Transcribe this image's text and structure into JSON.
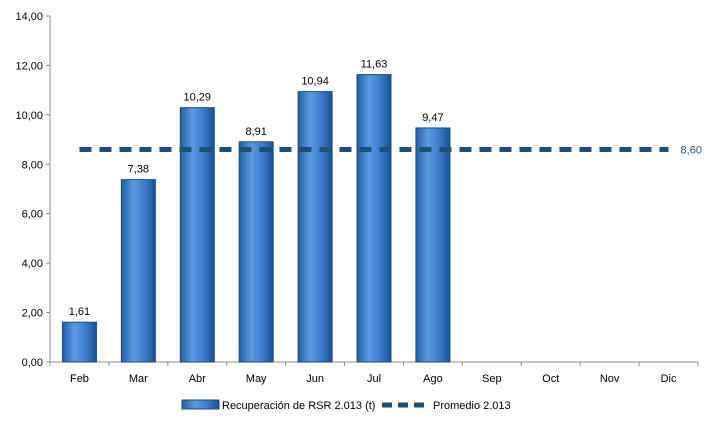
{
  "chart_data": {
    "type": "bar",
    "categories": [
      "Feb",
      "Mar",
      "Abr",
      "May",
      "Jun",
      "Jul",
      "Ago",
      "Sep",
      "Oct",
      "Nov",
      "Dic"
    ],
    "series": [
      {
        "name": "Recuperación de RSR 2.013 (t)",
        "type": "bar",
        "values": [
          1.61,
          7.38,
          10.29,
          8.91,
          10.94,
          11.63,
          9.47,
          null,
          null,
          null,
          null
        ],
        "labels": [
          "1,61",
          "7,38",
          "10,29",
          "8,91",
          "10,94",
          "11,63",
          "9,47",
          "",
          "",
          "",
          ""
        ],
        "color": "#3d7fcc"
      },
      {
        "name": "Promedio 2.013",
        "type": "line",
        "style": "dashed",
        "value": 8.6,
        "label": "8,60",
        "color": "#1f4e79"
      }
    ],
    "y_ticks": [
      "0,00",
      "2,00",
      "4,00",
      "6,00",
      "8,00",
      "10,00",
      "12,00",
      "14,00"
    ],
    "ylim": [
      0,
      14
    ],
    "grid": false,
    "legend_position": "bottom"
  }
}
